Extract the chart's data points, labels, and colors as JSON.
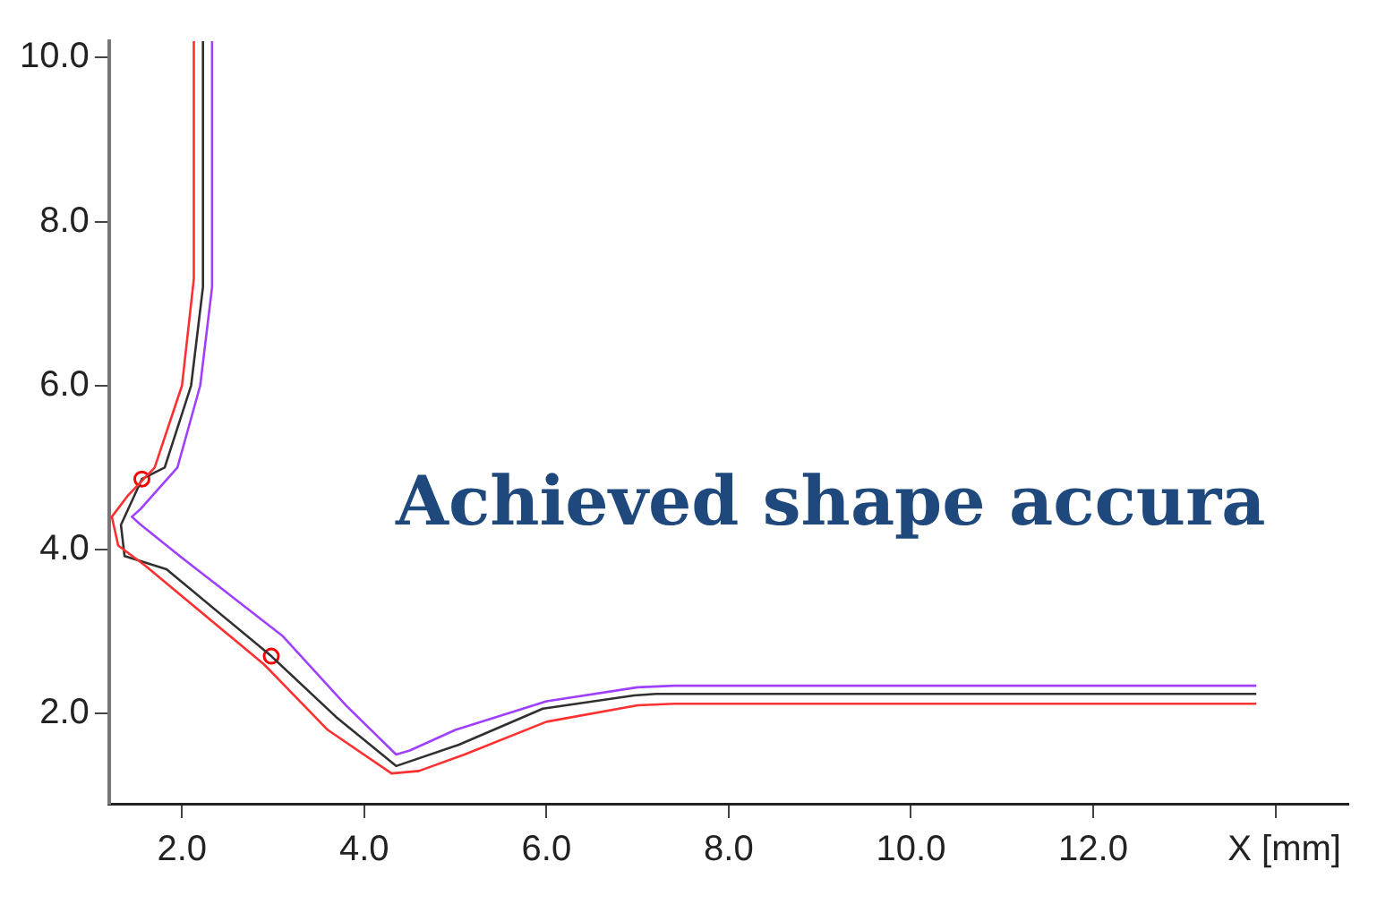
{
  "chart_data": {
    "type": "line",
    "xlabel": "X [mm]",
    "annotations": [
      "Achieved shape accura"
    ],
    "xlim": [
      1.2,
      14.8
    ],
    "ylim": [
      0.9,
      10.2
    ],
    "xticks": [
      {
        "value": 2,
        "label": "2.0"
      },
      {
        "value": 4,
        "label": "4.0"
      },
      {
        "value": 6,
        "label": "6.0"
      },
      {
        "value": 8,
        "label": "8.0"
      },
      {
        "value": 10,
        "label": "10.0"
      },
      {
        "value": 12,
        "label": "12.0"
      },
      {
        "value": 14,
        "label": null
      }
    ],
    "yticks": [
      {
        "value": 2,
        "label": "2.0"
      },
      {
        "value": 4,
        "label": "4.0"
      },
      {
        "value": 6,
        "label": "6.0"
      },
      {
        "value": 8,
        "label": "8.0"
      },
      {
        "value": 10,
        "label": "10.0"
      }
    ],
    "grid": false,
    "legend": false,
    "marker": "none",
    "line_style": "solid",
    "series": [
      {
        "color": "#ff3030",
        "x": [
          2.13,
          2.13,
          2.0,
          1.7,
          1.4,
          1.23,
          1.3,
          1.6,
          2.9,
          3.6,
          4.3,
          4.6,
          5.1,
          6.0,
          7.0,
          7.4,
          13.79
        ],
        "values": [
          10.2,
          7.3,
          6.0,
          5.0,
          4.65,
          4.4,
          4.05,
          3.8,
          2.6,
          1.8,
          1.27,
          1.3,
          1.5,
          1.9,
          2.1,
          2.12,
          2.12
        ]
      },
      {
        "color": "#a040ff",
        "x": [
          2.33,
          2.33,
          2.2,
          1.95,
          1.55,
          1.45,
          1.55,
          2.0,
          3.1,
          3.8,
          4.35,
          4.5,
          5.0,
          6.0,
          7.0,
          7.4,
          13.79
        ],
        "values": [
          10.2,
          7.2,
          6.0,
          5.0,
          4.5,
          4.4,
          4.3,
          3.9,
          2.95,
          2.1,
          1.5,
          1.55,
          1.8,
          2.15,
          2.32,
          2.34,
          2.34
        ]
      },
      {
        "color": "#303030",
        "x": [
          2.23,
          2.23,
          2.1,
          1.81,
          1.56,
          1.33,
          1.37,
          1.83,
          2.98,
          3.69,
          4.35,
          5.04,
          5.96,
          6.96,
          7.2,
          13.79
        ],
        "values": [
          10.2,
          7.2,
          6.0,
          5.0,
          4.86,
          4.3,
          3.92,
          3.76,
          2.7,
          1.96,
          1.36,
          1.62,
          2.06,
          2.22,
          2.24,
          2.24
        ]
      },
      {
        "type": "scatter",
        "color": "#ff0000",
        "marker": "circle",
        "x": [
          1.56,
          2.98
        ],
        "values": [
          4.86,
          2.7
        ]
      }
    ]
  }
}
